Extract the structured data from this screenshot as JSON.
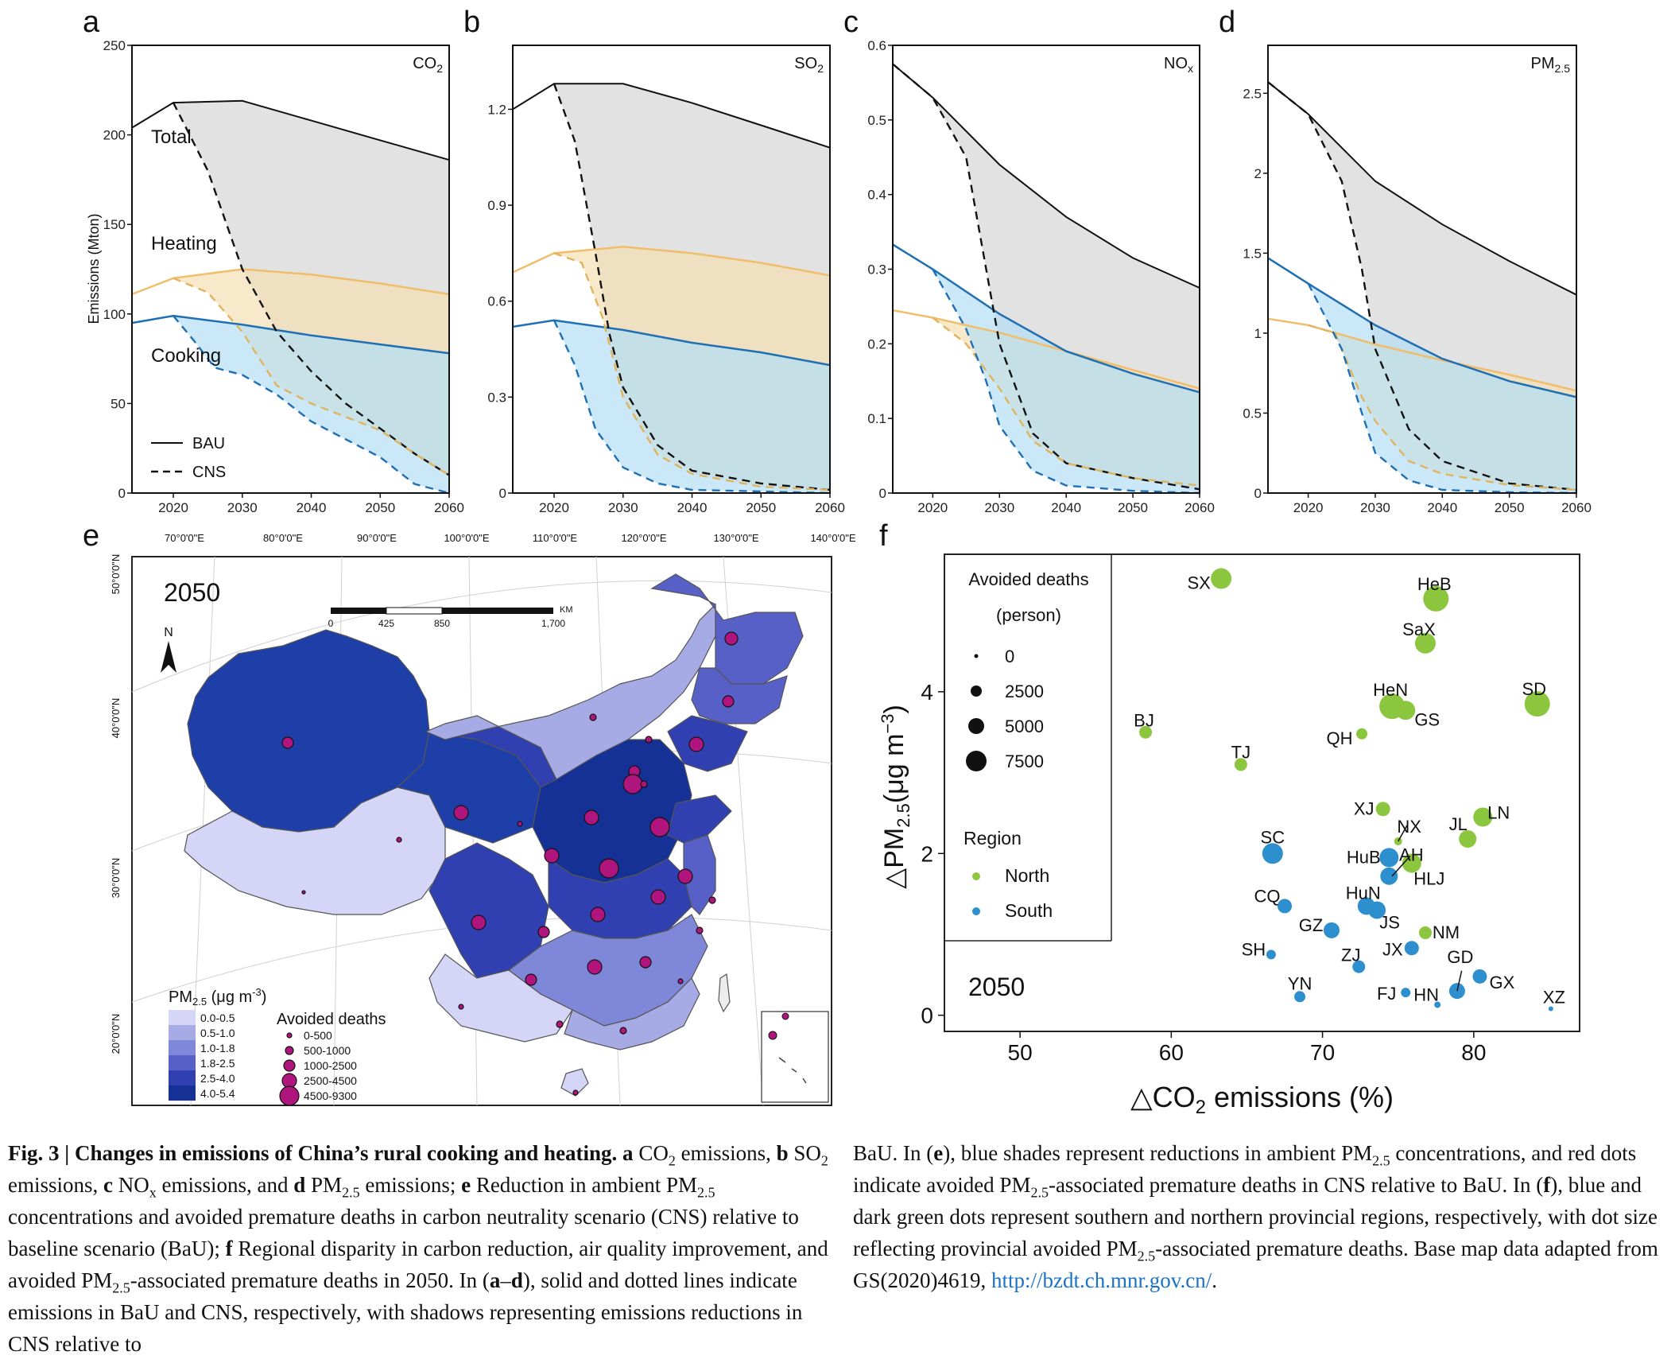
{
  "panels": [
    {
      "letter": "a",
      "name": "CO",
      "sub": "2",
      "ylabel": "Emissions (Mton)",
      "ymax": 250,
      "yticks": [
        0,
        50,
        100,
        150,
        200,
        250
      ],
      "labels": {
        "total": "Total",
        "heating": "Heating",
        "cooking": "Cooking"
      },
      "legend": {
        "bau": "BAU",
        "cns": "CNS"
      },
      "total_bau": [
        [
          2014,
          204
        ],
        [
          2020,
          218
        ],
        [
          2030,
          219
        ],
        [
          2040,
          208
        ],
        [
          2050,
          197
        ],
        [
          2060,
          186
        ]
      ],
      "total_cns": [
        [
          2020,
          218
        ],
        [
          2025,
          180
        ],
        [
          2030,
          125
        ],
        [
          2035,
          90
        ],
        [
          2040,
          68
        ],
        [
          2045,
          50
        ],
        [
          2050,
          36
        ],
        [
          2055,
          22
        ],
        [
          2060,
          10
        ]
      ],
      "heat_bau": [
        [
          2014,
          111
        ],
        [
          2020,
          120
        ],
        [
          2030,
          125
        ],
        [
          2040,
          122
        ],
        [
          2050,
          117
        ],
        [
          2060,
          111
        ]
      ],
      "heat_cns": [
        [
          2020,
          120
        ],
        [
          2025,
          112
        ],
        [
          2030,
          90
        ],
        [
          2035,
          60
        ],
        [
          2040,
          50
        ],
        [
          2050,
          35
        ],
        [
          2055,
          22
        ],
        [
          2060,
          10
        ]
      ],
      "cook_bau": [
        [
          2014,
          95
        ],
        [
          2020,
          99
        ],
        [
          2030,
          94
        ],
        [
          2040,
          88
        ],
        [
          2050,
          83
        ],
        [
          2060,
          78
        ]
      ],
      "cook_cns": [
        [
          2020,
          99
        ],
        [
          2023,
          85
        ],
        [
          2026,
          70
        ],
        [
          2030,
          66
        ],
        [
          2035,
          55
        ],
        [
          2040,
          40
        ],
        [
          2045,
          30
        ],
        [
          2050,
          20
        ],
        [
          2055,
          5
        ],
        [
          2060,
          0
        ]
      ]
    },
    {
      "letter": "b",
      "name": "SO",
      "sub": "2",
      "ymax": 1.4,
      "yticks": [
        0,
        0.3,
        0.6,
        0.9,
        1.2
      ],
      "total_bau": [
        [
          2014,
          1.2
        ],
        [
          2020,
          1.28
        ],
        [
          2030,
          1.28
        ],
        [
          2040,
          1.22
        ],
        [
          2050,
          1.15
        ],
        [
          2060,
          1.08
        ]
      ],
      "total_cns": [
        [
          2020,
          1.28
        ],
        [
          2023,
          1.1
        ],
        [
          2026,
          0.75
        ],
        [
          2028,
          0.5
        ],
        [
          2030,
          0.33
        ],
        [
          2035,
          0.15
        ],
        [
          2040,
          0.07
        ],
        [
          2050,
          0.03
        ],
        [
          2060,
          0.01
        ]
      ],
      "heat_bau": [
        [
          2014,
          0.69
        ],
        [
          2020,
          0.75
        ],
        [
          2030,
          0.77
        ],
        [
          2040,
          0.75
        ],
        [
          2050,
          0.72
        ],
        [
          2060,
          0.68
        ]
      ],
      "heat_cns": [
        [
          2020,
          0.75
        ],
        [
          2024,
          0.72
        ],
        [
          2027,
          0.55
        ],
        [
          2030,
          0.3
        ],
        [
          2035,
          0.12
        ],
        [
          2040,
          0.06
        ],
        [
          2050,
          0.02
        ],
        [
          2060,
          0.01
        ]
      ],
      "cook_bau": [
        [
          2014,
          0.52
        ],
        [
          2020,
          0.54
        ],
        [
          2030,
          0.51
        ],
        [
          2040,
          0.47
        ],
        [
          2050,
          0.44
        ],
        [
          2060,
          0.4
        ]
      ],
      "cook_cns": [
        [
          2020,
          0.54
        ],
        [
          2023,
          0.4
        ],
        [
          2026,
          0.2
        ],
        [
          2030,
          0.08
        ],
        [
          2035,
          0.03
        ],
        [
          2040,
          0.01
        ],
        [
          2050,
          0.005
        ],
        [
          2060,
          0
        ]
      ]
    },
    {
      "letter": "c",
      "name": "NO",
      "sub": "x",
      "ymax": 0.6,
      "yticks": [
        0,
        0.1,
        0.2,
        0.3,
        0.4,
        0.5,
        0.6
      ],
      "total_bau": [
        [
          2014,
          0.575
        ],
        [
          2020,
          0.53
        ],
        [
          2030,
          0.44
        ],
        [
          2040,
          0.37
        ],
        [
          2050,
          0.315
        ],
        [
          2060,
          0.275
        ]
      ],
      "total_cns": [
        [
          2014,
          0.575
        ],
        [
          2020,
          0.53
        ],
        [
          2025,
          0.45
        ],
        [
          2028,
          0.3
        ],
        [
          2030,
          0.2
        ],
        [
          2035,
          0.08
        ],
        [
          2040,
          0.04
        ],
        [
          2050,
          0.02
        ],
        [
          2060,
          0.005
        ]
      ],
      "heat_bau": [
        [
          2014,
          0.245
        ],
        [
          2020,
          0.235
        ],
        [
          2030,
          0.215
        ],
        [
          2040,
          0.19
        ],
        [
          2050,
          0.165
        ],
        [
          2060,
          0.14
        ]
      ],
      "heat_cns": [
        [
          2020,
          0.235
        ],
        [
          2025,
          0.2
        ],
        [
          2030,
          0.14
        ],
        [
          2035,
          0.07
        ],
        [
          2040,
          0.04
        ],
        [
          2050,
          0.02
        ],
        [
          2060,
          0.01
        ]
      ],
      "cook_bau": [
        [
          2014,
          0.333
        ],
        [
          2020,
          0.3
        ],
        [
          2030,
          0.24
        ],
        [
          2040,
          0.19
        ],
        [
          2050,
          0.16
        ],
        [
          2060,
          0.135
        ]
      ],
      "cook_cns": [
        [
          2020,
          0.3
        ],
        [
          2025,
          0.22
        ],
        [
          2028,
          0.15
        ],
        [
          2030,
          0.09
        ],
        [
          2035,
          0.03
        ],
        [
          2040,
          0.01
        ],
        [
          2050,
          0.003
        ],
        [
          2060,
          0
        ]
      ]
    },
    {
      "letter": "d",
      "name": "PM",
      "sub": "2.5",
      "ymax": 2.8,
      "yticks": [
        0,
        0.5,
        1,
        1.5,
        2,
        2.5
      ],
      "tickfmt": "plain",
      "total_bau": [
        [
          2014,
          2.57
        ],
        [
          2020,
          2.37
        ],
        [
          2030,
          1.95
        ],
        [
          2040,
          1.68
        ],
        [
          2050,
          1.45
        ],
        [
          2060,
          1.24
        ]
      ],
      "total_cns": [
        [
          2014,
          2.57
        ],
        [
          2020,
          2.37
        ],
        [
          2025,
          1.95
        ],
        [
          2028,
          1.4
        ],
        [
          2030,
          0.9
        ],
        [
          2035,
          0.4
        ],
        [
          2040,
          0.2
        ],
        [
          2050,
          0.06
        ],
        [
          2060,
          0.02
        ]
      ],
      "heat_bau": [
        [
          2014,
          1.09
        ],
        [
          2020,
          1.05
        ],
        [
          2030,
          0.93
        ],
        [
          2040,
          0.83
        ],
        [
          2050,
          0.74
        ],
        [
          2060,
          0.64
        ]
      ],
      "heat_cns": [
        [
          2020,
          1.05
        ],
        [
          2024,
          1.0
        ],
        [
          2028,
          0.6
        ],
        [
          2030,
          0.45
        ],
        [
          2035,
          0.2
        ],
        [
          2040,
          0.12
        ],
        [
          2050,
          0.05
        ],
        [
          2060,
          0.02
        ]
      ],
      "cook_bau": [
        [
          2014,
          1.47
        ],
        [
          2020,
          1.31
        ],
        [
          2030,
          1.05
        ],
        [
          2040,
          0.84
        ],
        [
          2050,
          0.7
        ],
        [
          2060,
          0.6
        ]
      ],
      "cook_cns": [
        [
          2020,
          1.31
        ],
        [
          2025,
          0.9
        ],
        [
          2028,
          0.5
        ],
        [
          2030,
          0.25
        ],
        [
          2035,
          0.08
        ],
        [
          2040,
          0.02
        ],
        [
          2050,
          0.005
        ],
        [
          2060,
          0
        ]
      ]
    }
  ],
  "xticks": [
    2020,
    2030,
    2040,
    2050,
    2060
  ],
  "colors": {
    "total_fill": "#d6d6d6",
    "heat_fill": "#f5dfb4",
    "cook_fill": "#b4def5",
    "heat_line": "#f0be6a",
    "cook_line": "#1f6fb4",
    "north": "#8cc63f",
    "south": "#2e8fce",
    "dot": "#b0157e"
  },
  "map": {
    "letter": "e",
    "year": "2050",
    "north": "N",
    "lon_labels": [
      "70°0'0\"E",
      "80°0'0\"E",
      "90°0'0\"E",
      "100°0'0\"E",
      "110°0'0\"E",
      "120°0'0\"E",
      "130°0'0\"E",
      "140°0'0\"E"
    ],
    "lat_labels": [
      "50°0'0\"N",
      "40°0'0\"N",
      "30°0'0\"N",
      "20°0'0\"N"
    ],
    "scale": {
      "ticks": [
        "0",
        "425",
        "850",
        "1,700"
      ],
      "unit": "KM"
    },
    "pm_title": "PM",
    "pm_sub": "2.5",
    "pm_unit": " (μg m",
    "pm_sup": "-3",
    "pm_close": ")",
    "pm_classes": [
      {
        "label": "0.0-0.5",
        "color": "#d5d5f7"
      },
      {
        "label": "0.5-1.0",
        "color": "#a6abe6"
      },
      {
        "label": "1.0-1.8",
        "color": "#7f87d9"
      },
      {
        "label": "1.8-2.5",
        "color": "#5660c7"
      },
      {
        "label": "2.5-4.0",
        "color": "#3040b0"
      },
      {
        "label": "4.0-5.4",
        "color": "#163196"
      }
    ],
    "deaths_title": "Avoided deaths",
    "death_classes": [
      {
        "label": "0-500",
        "r": 3
      },
      {
        "label": "500-1000",
        "r": 5
      },
      {
        "label": "1000-2500",
        "r": 7
      },
      {
        "label": "2500-4500",
        "r": 9
      },
      {
        "label": "4500-9300",
        "r": 12
      }
    ]
  },
  "scatter": {
    "letter": "f",
    "year": "2050",
    "xlabel": "△CO",
    "xsub": "2",
    "xlabel_end": " emissions (%)",
    "ylabel": "△PM",
    "ysub": "2.5",
    "ylabel_mid": "(μg m",
    "ysup": "−3",
    "ylabel_end": ")",
    "xlim": [
      45,
      87
    ],
    "ylim": [
      -0.2,
      5.7
    ],
    "xticks": [
      50,
      60,
      70,
      80
    ],
    "yticks": [
      0,
      2,
      4
    ],
    "legend": {
      "size_title1": "Avoided deaths",
      "size_title2": "(person)",
      "sizes": [
        "0",
        "2500",
        "5000",
        "7500"
      ],
      "region_title": "Region",
      "north": "North",
      "south": "South"
    },
    "points": [
      {
        "id": "SX",
        "x": 63.3,
        "y": 5.4,
        "r": 13,
        "region": "north",
        "lx": -28,
        "ly": 6
      },
      {
        "id": "HeB",
        "x": 77.5,
        "y": 5.15,
        "r": 16,
        "region": "north",
        "lx": -2,
        "ly": -18
      },
      {
        "id": "SaX",
        "x": 76.8,
        "y": 4.6,
        "r": 13,
        "region": "north",
        "lx": -8,
        "ly": -17
      },
      {
        "id": "SD",
        "x": 84.2,
        "y": 3.85,
        "r": 16,
        "region": "north",
        "lx": -4,
        "ly": -18
      },
      {
        "id": "BJ",
        "x": 58.3,
        "y": 3.5,
        "r": 8,
        "region": "north",
        "lx": -2,
        "ly": -14
      },
      {
        "id": "HeN",
        "x": 74.6,
        "y": 3.82,
        "r": 16,
        "region": "north",
        "lx": -2,
        "ly": -20
      },
      {
        "id": "GS",
        "x": 75.5,
        "y": 3.77,
        "r": 12,
        "region": "north",
        "lx": 27,
        "ly": 12
      },
      {
        "id": "QH",
        "x": 72.6,
        "y": 3.48,
        "r": 7,
        "region": "north",
        "lx": -28,
        "ly": 6
      },
      {
        "id": "TJ",
        "x": 64.6,
        "y": 3.1,
        "r": 8,
        "region": "north",
        "lx": 0,
        "ly": -15
      },
      {
        "id": "XJ",
        "x": 74.0,
        "y": 2.55,
        "r": 9,
        "region": "north",
        "lx": -24,
        "ly": 0
      },
      {
        "id": "NX",
        "x": 75.0,
        "y": 2.15,
        "r": 5,
        "region": "north",
        "lx": 14,
        "ly": -18
      },
      {
        "id": "JL",
        "x": 79.6,
        "y": 2.18,
        "r": 11,
        "region": "north",
        "lx": -12,
        "ly": -18
      },
      {
        "id": "LN",
        "x": 80.6,
        "y": 2.45,
        "r": 12,
        "region": "north",
        "lx": 20,
        "ly": -5
      },
      {
        "id": "HLJ",
        "x": 75.9,
        "y": 1.88,
        "r": 12,
        "region": "north",
        "lx": 22,
        "ly": 20
      },
      {
        "id": "NM",
        "x": 76.8,
        "y": 1.02,
        "r": 8,
        "region": "north",
        "lx": 26,
        "ly": 0
      },
      {
        "id": "SC",
        "x": 66.7,
        "y": 2.0,
        "r": 13,
        "region": "south",
        "lx": 0,
        "ly": -20
      },
      {
        "id": "HuB",
        "x": 74.4,
        "y": 1.95,
        "r": 12,
        "region": "south",
        "lx": -32,
        "ly": 0
      },
      {
        "id": "AH",
        "x": 74.4,
        "y": 1.72,
        "r": 11,
        "region": "south",
        "lx": 28,
        "ly": -26
      },
      {
        "id": "CQ",
        "x": 67.5,
        "y": 1.35,
        "r": 9,
        "region": "south",
        "lx": -22,
        "ly": -12
      },
      {
        "id": "HuN",
        "x": 72.9,
        "y": 1.35,
        "r": 11,
        "region": "south",
        "lx": -4,
        "ly": -16
      },
      {
        "id": "JS",
        "x": 73.6,
        "y": 1.3,
        "r": 11,
        "region": "south",
        "lx": 16,
        "ly": 16
      },
      {
        "id": "GZ",
        "x": 70.6,
        "y": 1.05,
        "r": 10,
        "region": "south",
        "lx": -26,
        "ly": -6
      },
      {
        "id": "SH",
        "x": 66.6,
        "y": 0.75,
        "r": 6,
        "region": "south",
        "lx": -22,
        "ly": -6
      },
      {
        "id": "JX",
        "x": 75.9,
        "y": 0.83,
        "r": 9,
        "region": "south",
        "lx": -24,
        "ly": 2
      },
      {
        "id": "ZJ",
        "x": 72.4,
        "y": 0.6,
        "r": 8,
        "region": "south",
        "lx": -10,
        "ly": -14
      },
      {
        "id": "GD",
        "x": 78.9,
        "y": 0.3,
        "r": 10,
        "region": "south",
        "lx": 4,
        "ly": -42
      },
      {
        "id": "GX",
        "x": 80.4,
        "y": 0.48,
        "r": 9,
        "region": "south",
        "lx": 28,
        "ly": 8
      },
      {
        "id": "YN",
        "x": 68.5,
        "y": 0.23,
        "r": 7,
        "region": "south",
        "lx": 0,
        "ly": -16
      },
      {
        "id": "FJ",
        "x": 75.5,
        "y": 0.28,
        "r": 6,
        "region": "south",
        "lx": -24,
        "ly": 2
      },
      {
        "id": "HN",
        "x": 77.6,
        "y": 0.13,
        "r": 4,
        "region": "south",
        "lx": -14,
        "ly": -12
      },
      {
        "id": "XZ",
        "x": 85.1,
        "y": 0.08,
        "r": 3,
        "region": "south",
        "lx": 4,
        "ly": -14
      }
    ]
  }
}
